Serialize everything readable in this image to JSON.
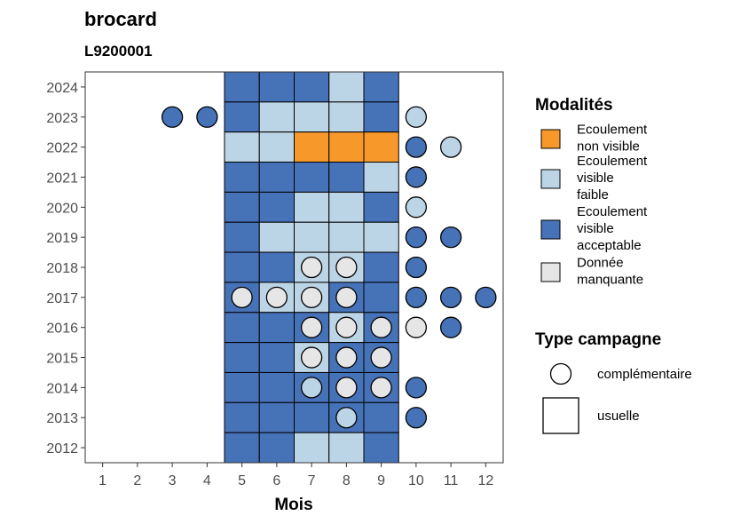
{
  "chart_data": {
    "type": "heatmap",
    "title": "brocard",
    "subtitle": "L9200001",
    "xlabel": "Mois",
    "ylabel": "",
    "x_ticks": [
      1,
      2,
      3,
      4,
      5,
      6,
      7,
      8,
      9,
      10,
      11,
      12
    ],
    "y_ticks": [
      2012,
      2013,
      2014,
      2015,
      2016,
      2017,
      2018,
      2019,
      2020,
      2021,
      2022,
      2023,
      2024
    ],
    "xlim": [
      0.5,
      12.5
    ],
    "ylim": [
      2011.5,
      2024.5
    ],
    "grid": false,
    "colors": {
      "nv": "#F7982A",
      "vf": "#BCD5E6",
      "va": "#4672B7",
      "dm": "#E6E6E6"
    },
    "legend": {
      "position": "right",
      "modalites_title": "Modalités",
      "modalites": [
        {
          "code": "nv",
          "lines": [
            "Ecoulement",
            "non visible"
          ]
        },
        {
          "code": "vf",
          "lines": [
            "Ecoulement",
            "visible",
            "faible"
          ]
        },
        {
          "code": "va",
          "lines": [
            "Ecoulement",
            "visible",
            "acceptable"
          ]
        },
        {
          "code": "dm",
          "lines": [
            "Donnée",
            "manquante"
          ]
        }
      ],
      "type_title": "Type campagne",
      "types": [
        {
          "shape": "circle",
          "label": "complémentaire"
        },
        {
          "shape": "square",
          "label": "usuelle"
        }
      ]
    },
    "usuelle": [
      {
        "year": 2024,
        "values": {
          "5": "va",
          "6": "va",
          "7": "va",
          "8": "vf",
          "9": "va"
        }
      },
      {
        "year": 2023,
        "values": {
          "5": "va",
          "6": "vf",
          "7": "vf",
          "8": "vf",
          "9": "va"
        }
      },
      {
        "year": 2022,
        "values": {
          "5": "vf",
          "6": "vf",
          "7": "nv",
          "8": "nv",
          "9": "nv"
        }
      },
      {
        "year": 2021,
        "values": {
          "5": "va",
          "6": "va",
          "7": "va",
          "8": "va",
          "9": "vf"
        }
      },
      {
        "year": 2020,
        "values": {
          "5": "va",
          "6": "va",
          "7": "vf",
          "8": "vf",
          "9": "va"
        }
      },
      {
        "year": 2019,
        "values": {
          "5": "va",
          "6": "vf",
          "7": "vf",
          "8": "vf",
          "9": "vf"
        }
      },
      {
        "year": 2018,
        "values": {
          "5": "va",
          "6": "va",
          "7": "vf",
          "8": "vf",
          "9": "va"
        }
      },
      {
        "year": 2017,
        "values": {
          "5": "va",
          "6": "vf",
          "7": "vf",
          "8": "va",
          "9": "va"
        }
      },
      {
        "year": 2016,
        "values": {
          "5": "va",
          "6": "va",
          "7": "va",
          "8": "vf",
          "9": "va"
        }
      },
      {
        "year": 2015,
        "values": {
          "5": "va",
          "6": "va",
          "7": "vf",
          "8": "va",
          "9": "va"
        }
      },
      {
        "year": 2014,
        "values": {
          "5": "va",
          "6": "va",
          "7": "va",
          "8": "va",
          "9": "va"
        }
      },
      {
        "year": 2013,
        "values": {
          "5": "va",
          "6": "va",
          "7": "va",
          "8": "va",
          "9": "va"
        }
      },
      {
        "year": 2012,
        "values": {
          "5": "va",
          "6": "va",
          "7": "vf",
          "8": "vf",
          "9": "va"
        }
      }
    ],
    "complementaire": [
      {
        "year": 2023,
        "month": 3,
        "code": "va"
      },
      {
        "year": 2023,
        "month": 4,
        "code": "va"
      },
      {
        "year": 2023,
        "month": 10,
        "code": "vf"
      },
      {
        "year": 2022,
        "month": 10,
        "code": "va"
      },
      {
        "year": 2022,
        "month": 11,
        "code": "vf"
      },
      {
        "year": 2021,
        "month": 10,
        "code": "va"
      },
      {
        "year": 2020,
        "month": 10,
        "code": "vf"
      },
      {
        "year": 2019,
        "month": 10,
        "code": "va"
      },
      {
        "year": 2019,
        "month": 11,
        "code": "va"
      },
      {
        "year": 2018,
        "month": 7,
        "code": "dm"
      },
      {
        "year": 2018,
        "month": 8,
        "code": "dm"
      },
      {
        "year": 2018,
        "month": 10,
        "code": "va"
      },
      {
        "year": 2017,
        "month": 5,
        "code": "dm"
      },
      {
        "year": 2017,
        "month": 6,
        "code": "dm"
      },
      {
        "year": 2017,
        "month": 7,
        "code": "dm"
      },
      {
        "year": 2017,
        "month": 8,
        "code": "dm"
      },
      {
        "year": 2017,
        "month": 10,
        "code": "va"
      },
      {
        "year": 2017,
        "month": 11,
        "code": "va"
      },
      {
        "year": 2017,
        "month": 12,
        "code": "va"
      },
      {
        "year": 2016,
        "month": 7,
        "code": "dm"
      },
      {
        "year": 2016,
        "month": 8,
        "code": "dm"
      },
      {
        "year": 2016,
        "month": 9,
        "code": "dm"
      },
      {
        "year": 2016,
        "month": 10,
        "code": "dm"
      },
      {
        "year": 2016,
        "month": 11,
        "code": "va"
      },
      {
        "year": 2015,
        "month": 7,
        "code": "dm"
      },
      {
        "year": 2015,
        "month": 8,
        "code": "dm"
      },
      {
        "year": 2015,
        "month": 9,
        "code": "dm"
      },
      {
        "year": 2014,
        "month": 7,
        "code": "vf"
      },
      {
        "year": 2014,
        "month": 8,
        "code": "dm"
      },
      {
        "year": 2014,
        "month": 9,
        "code": "dm"
      },
      {
        "year": 2014,
        "month": 10,
        "code": "va"
      },
      {
        "year": 2013,
        "month": 8,
        "code": "vf"
      },
      {
        "year": 2013,
        "month": 10,
        "code": "va"
      }
    ]
  }
}
